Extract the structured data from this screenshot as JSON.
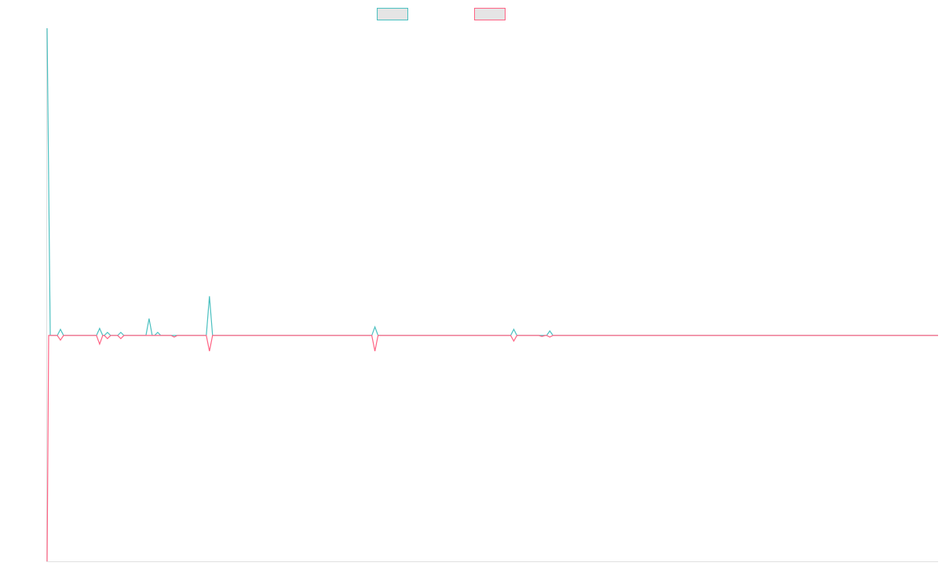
{
  "chart_data": {
    "type": "line",
    "title": "",
    "xlabel": "",
    "ylabel": "",
    "xlim": [
      0,
      1136
    ],
    "ylim": [
      -73.5,
      100
    ],
    "grid": false,
    "legend": "top",
    "series": [
      {
        "color": "#4bc0c0",
        "points": [
          [
            0,
            100
          ],
          [
            4,
            0
          ],
          [
            13,
            0
          ],
          [
            17,
            2
          ],
          [
            21,
            0
          ],
          [
            63,
            0
          ],
          [
            67,
            2.3
          ],
          [
            71,
            0
          ],
          [
            73,
            0
          ],
          [
            77,
            1
          ],
          [
            81,
            0
          ],
          [
            90,
            0
          ],
          [
            94,
            1
          ],
          [
            98,
            0
          ],
          [
            126,
            0
          ],
          [
            130,
            5.5
          ],
          [
            134,
            0
          ],
          [
            137,
            0
          ],
          [
            141,
            1
          ],
          [
            145,
            0
          ],
          [
            203,
            0
          ],
          [
            207,
            12.8
          ],
          [
            211,
            0
          ],
          [
            414,
            0
          ],
          [
            418,
            2.8
          ],
          [
            422,
            0
          ],
          [
            591,
            0
          ],
          [
            595,
            2
          ],
          [
            599,
            0
          ],
          [
            637,
            0
          ],
          [
            641,
            1.5
          ],
          [
            645,
            0
          ],
          [
            1136,
            0
          ]
        ]
      },
      {
        "color": "#ff6384",
        "points": [
          [
            0,
            -73.5
          ],
          [
            2,
            0
          ],
          [
            13,
            0
          ],
          [
            17,
            -1.5
          ],
          [
            21,
            0
          ],
          [
            63,
            0
          ],
          [
            67,
            -2.8
          ],
          [
            71,
            0
          ],
          [
            73,
            0
          ],
          [
            77,
            -1
          ],
          [
            81,
            0
          ],
          [
            90,
            0
          ],
          [
            94,
            -1
          ],
          [
            98,
            0
          ],
          [
            158,
            0
          ],
          [
            162,
            -0.5
          ],
          [
            166,
            0
          ],
          [
            203,
            0
          ],
          [
            207,
            -5.1
          ],
          [
            211,
            0
          ],
          [
            414,
            0
          ],
          [
            418,
            -5.1
          ],
          [
            422,
            0
          ],
          [
            591,
            0
          ],
          [
            595,
            -1.8
          ],
          [
            599,
            0
          ],
          [
            627,
            0
          ],
          [
            631,
            -0.3
          ],
          [
            635,
            0
          ],
          [
            637,
            0
          ],
          [
            641,
            -0.5
          ],
          [
            645,
            0
          ],
          [
            1136,
            0
          ]
        ]
      }
    ]
  }
}
